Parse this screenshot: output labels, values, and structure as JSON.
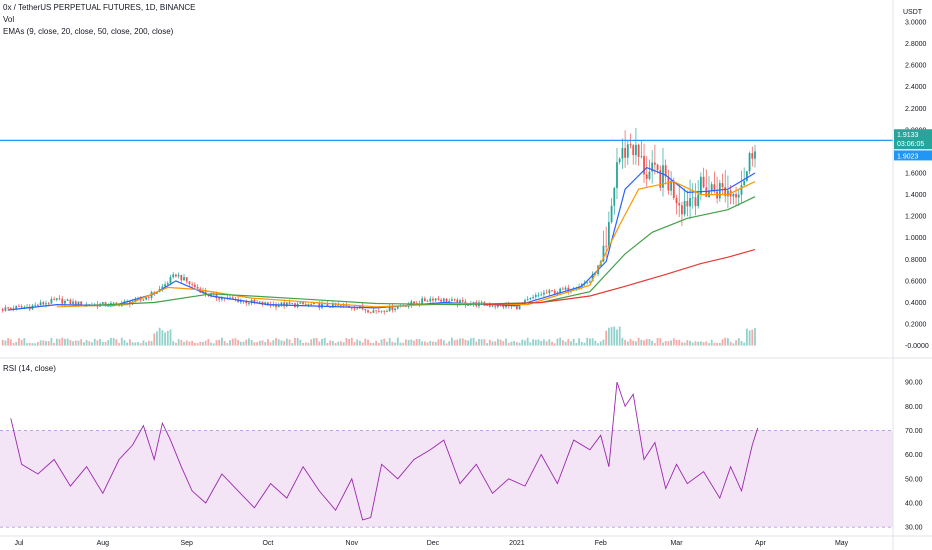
{
  "legend": {
    "symbol": "0x / TetherUS PERPETUAL FUTURES, 1D, BINANCE",
    "vol": "Vol",
    "emas": "EMAs (9, close, 20, close, 50, close, 200, close)",
    "rsi": "RSI (14, close)"
  },
  "price_axis": {
    "currency": "USDT",
    "ticks": [
      "3.0000",
      "2.8000",
      "2.6000",
      "2.4000",
      "2.2000",
      "2.0000",
      "1.6000",
      "1.4000",
      "1.2000",
      "1.0000",
      "0.8000",
      "0.6000",
      "0.4000",
      "0.2000",
      "-0.0000"
    ],
    "last_price": "1.9133",
    "countdown": "03:06:05",
    "line_price": "1.9023"
  },
  "rsi_axis": {
    "ticks": [
      "90.00",
      "80.00",
      "70.00",
      "60.00",
      "50.00",
      "40.00",
      "30.00"
    ]
  },
  "time_axis": {
    "labels": [
      "Jul",
      "Aug",
      "Sep",
      "Oct",
      "Nov",
      "Dec",
      "2021",
      "Feb",
      "Mar",
      "Apr",
      "May"
    ]
  },
  "colors": {
    "up": "#26a69a",
    "down": "#ef5350",
    "ema9": "#2962ff",
    "ema20": "#ff9800",
    "ema50": "#43a047",
    "ema200": "#e53935",
    "hline": "#2196f3",
    "rsi": "#9c27b0",
    "rsi_band": "#f3e5f5"
  },
  "chart_data": [
    {
      "type": "candlestick",
      "title": "0x / TetherUS PERPETUAL FUTURES, 1D, BINANCE",
      "ylim": [
        -0.05,
        3.0
      ],
      "y_log": false,
      "horizontal_line": 1.9023,
      "last_close": 1.9133,
      "x_range": [
        "2020-06-24",
        "2021-05-20"
      ],
      "price_knots": {
        "dates": [
          "2020-06-25",
          "2020-07-05",
          "2020-07-15",
          "2020-07-25",
          "2020-08-05",
          "2020-08-15",
          "2020-08-22",
          "2020-08-28",
          "2020-09-03",
          "2020-09-10",
          "2020-09-20",
          "2020-10-01",
          "2020-10-15",
          "2020-11-01",
          "2020-11-10",
          "2020-11-25",
          "2020-12-01",
          "2020-12-10",
          "2020-12-20",
          "2021-01-01",
          "2021-01-10",
          "2021-01-20",
          "2021-01-28",
          "2021-02-03",
          "2021-02-07",
          "2021-02-12",
          "2021-02-18",
          "2021-02-25",
          "2021-03-03",
          "2021-03-10",
          "2021-03-17",
          "2021-03-22",
          "2021-03-27",
          "2021-03-30"
        ],
        "closes": [
          0.34,
          0.36,
          0.42,
          0.38,
          0.38,
          0.42,
          0.52,
          0.66,
          0.56,
          0.46,
          0.42,
          0.38,
          0.38,
          0.36,
          0.32,
          0.4,
          0.44,
          0.4,
          0.38,
          0.36,
          0.48,
          0.52,
          0.6,
          0.85,
          1.7,
          1.88,
          1.6,
          1.55,
          1.32,
          1.45,
          1.45,
          1.42,
          1.62,
          1.91
        ]
      },
      "emas": [
        {
          "name": "9",
          "dates": [
            "2020-06-27",
            "2020-07-15",
            "2020-08-05",
            "2020-08-20",
            "2020-08-28",
            "2020-09-10",
            "2020-10-01",
            "2020-11-10",
            "2020-12-05",
            "2021-01-01",
            "2021-01-25",
            "2021-02-03",
            "2021-02-10",
            "2021-02-18",
            "2021-02-25",
            "2021-03-05",
            "2021-03-12",
            "2021-03-20",
            "2021-03-30"
          ],
          "values": [
            0.33,
            0.38,
            0.37,
            0.48,
            0.6,
            0.46,
            0.38,
            0.35,
            0.4,
            0.37,
            0.55,
            0.78,
            1.45,
            1.65,
            1.58,
            1.42,
            1.43,
            1.45,
            1.6
          ]
        },
        {
          "name": "20",
          "dates": [
            "2020-07-15",
            "2020-08-10",
            "2020-08-25",
            "2020-09-05",
            "2020-09-25",
            "2020-11-10",
            "2020-12-10",
            "2021-01-05",
            "2021-01-28",
            "2021-02-08",
            "2021-02-15",
            "2021-02-28",
            "2021-03-10",
            "2021-03-20",
            "2021-03-30"
          ],
          "values": [
            0.36,
            0.38,
            0.54,
            0.52,
            0.44,
            0.36,
            0.39,
            0.38,
            0.56,
            1.12,
            1.45,
            1.52,
            1.4,
            1.4,
            1.52
          ]
        },
        {
          "name": "50",
          "dates": [
            "2020-07-25",
            "2020-08-20",
            "2020-09-10",
            "2020-09-25",
            "2020-10-15",
            "2020-11-10",
            "2020-12-10",
            "2021-01-10",
            "2021-01-28",
            "2021-02-10",
            "2021-02-20",
            "2021-03-05",
            "2021-03-20",
            "2021-03-30"
          ],
          "values": [
            0.37,
            0.4,
            0.48,
            0.46,
            0.43,
            0.39,
            0.38,
            0.4,
            0.5,
            0.85,
            1.05,
            1.18,
            1.26,
            1.38
          ]
        },
        {
          "name": "200",
          "dates": [
            "2020-12-20",
            "2021-01-10",
            "2021-01-28",
            "2021-02-10",
            "2021-02-25",
            "2021-03-10",
            "2021-03-20",
            "2021-03-30"
          ],
          "values": [
            0.38,
            0.4,
            0.46,
            0.55,
            0.66,
            0.76,
            0.82,
            0.89
          ]
        }
      ]
    },
    {
      "type": "line",
      "title": "RSI (14, close)",
      "ylim": [
        28,
        95
      ],
      "band": [
        30,
        70
      ],
      "x": [
        "2020-06-28",
        "2020-07-02",
        "2020-07-08",
        "2020-07-14",
        "2020-07-20",
        "2020-07-26",
        "2020-08-01",
        "2020-08-07",
        "2020-08-12",
        "2020-08-16",
        "2020-08-20",
        "2020-08-23",
        "2020-08-26",
        "2020-08-30",
        "2020-09-03",
        "2020-09-08",
        "2020-09-14",
        "2020-09-20",
        "2020-09-26",
        "2020-10-02",
        "2020-10-08",
        "2020-10-14",
        "2020-10-20",
        "2020-10-26",
        "2020-11-01",
        "2020-11-05",
        "2020-11-08",
        "2020-11-12",
        "2020-11-18",
        "2020-11-24",
        "2020-11-30",
        "2020-12-05",
        "2020-12-11",
        "2020-12-17",
        "2020-12-23",
        "2020-12-29",
        "2021-01-04",
        "2021-01-10",
        "2021-01-16",
        "2021-01-22",
        "2021-01-28",
        "2021-02-01",
        "2021-02-04",
        "2021-02-07",
        "2021-02-10",
        "2021-02-13",
        "2021-02-17",
        "2021-02-21",
        "2021-02-25",
        "2021-03-01",
        "2021-03-05",
        "2021-03-11",
        "2021-03-17",
        "2021-03-21",
        "2021-03-25",
        "2021-03-29",
        "2021-03-31"
      ],
      "values": [
        75,
        56,
        52,
        58,
        47,
        55,
        44,
        58,
        64,
        72,
        58,
        73,
        66,
        55,
        45,
        40,
        52,
        45,
        38,
        48,
        42,
        55,
        45,
        37,
        50,
        33,
        34,
        56,
        50,
        58,
        62,
        66,
        48,
        56,
        44,
        50,
        47,
        60,
        48,
        66,
        62,
        68,
        55,
        90,
        80,
        85,
        58,
        65,
        46,
        56,
        48,
        53,
        42,
        55,
        45,
        64,
        71
      ]
    }
  ]
}
